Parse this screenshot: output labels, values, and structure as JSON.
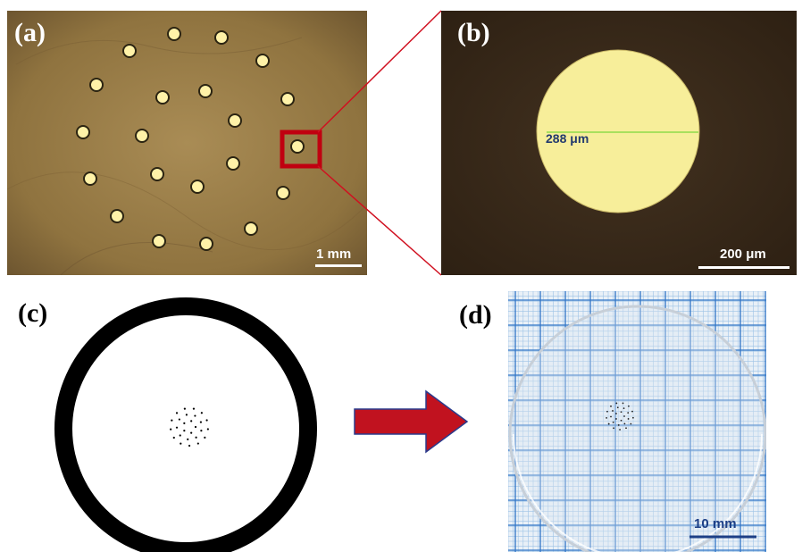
{
  "panels": {
    "a": {
      "label": "(a)",
      "scale_label": "1 mm",
      "colors": {
        "background": "#9a7c45",
        "hole_fill": "#fff2a8",
        "hole_ring": "#2b2412",
        "zoom_box": "#c00010"
      }
    },
    "b": {
      "label": "(b)",
      "diameter_label": "288 μm",
      "scale_label": "200 μm",
      "colors": {
        "background": "#3a2a18",
        "disk": "#f7ee9a",
        "measure_line": "#8fdc4a",
        "measure_text": "#233a6e"
      }
    },
    "c": {
      "label": "(c)",
      "colors": {
        "ring": "#000000",
        "dots": "#000000"
      }
    },
    "d": {
      "label": "(d)",
      "scale_label": "10 mm",
      "colors": {
        "grid_major": "#2f74c6",
        "grid_minor": "#9cc2e6",
        "paper": "#e9f0f7",
        "scale_text": "#1d3f86"
      }
    }
  },
  "arrow": {
    "color": "#c1121f",
    "outline": "#2a3a8c",
    "direction": "right"
  },
  "zoom_lines": {
    "color": "#d01020"
  }
}
